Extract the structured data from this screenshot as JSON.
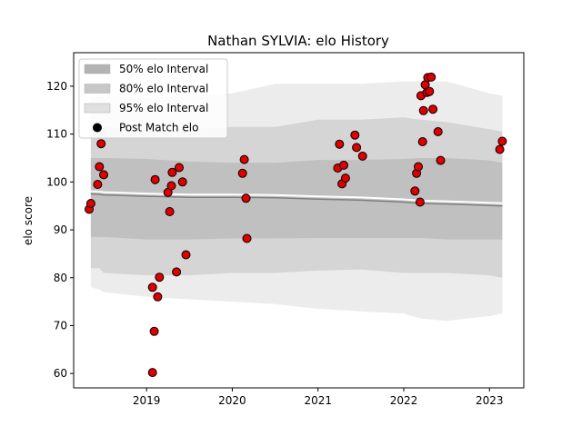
{
  "chart_data": {
    "type": "scatter",
    "title": "Nathan SYLVIA: elo History",
    "xlabel": "",
    "ylabel": "elo score",
    "xlim": [
      2018.15,
      2023.4
    ],
    "ylim": [
      57,
      127
    ],
    "x_ticks": [
      {
        "value": 2019,
        "label": "2019"
      },
      {
        "value": 2020,
        "label": "2020"
      },
      {
        "value": 2021,
        "label": "2021"
      },
      {
        "value": 2022,
        "label": "2022"
      },
      {
        "value": 2023,
        "label": "2023"
      }
    ],
    "y_ticks": [
      {
        "value": 60,
        "label": "60"
      },
      {
        "value": 70,
        "label": "70"
      },
      {
        "value": 80,
        "label": "80"
      },
      {
        "value": 90,
        "label": "90"
      },
      {
        "value": 100,
        "label": "100"
      },
      {
        "value": 110,
        "label": "110"
      },
      {
        "value": 120,
        "label": "120"
      }
    ],
    "grid": false,
    "legend_position": "top-left",
    "legend": [
      {
        "label": "50% elo Interval",
        "kind": "band",
        "color": "#b3b3b3"
      },
      {
        "label": "80% elo Interval",
        "kind": "band",
        "color": "#c7c7c7"
      },
      {
        "label": "95% elo Interval",
        "kind": "band",
        "color": "#e0e0e0"
      },
      {
        "label": "Post Match elo",
        "kind": "marker",
        "color": "#000000"
      }
    ],
    "bands": {
      "x": [
        2018.35,
        2018.45,
        2018.5,
        2019.0,
        2019.5,
        2020.0,
        2020.5,
        2021.0,
        2021.5,
        2022.0,
        2022.2,
        2022.5,
        2023.0,
        2023.15
      ],
      "mean": [
        97.5,
        97.4,
        97.3,
        97.0,
        96.8,
        96.8,
        96.7,
        96.4,
        96.2,
        95.8,
        95.5,
        95.4,
        95.1,
        95.0
      ],
      "p50_low": [
        88.5,
        88.5,
        88.5,
        88.0,
        88.0,
        88.2,
        88.2,
        88.3,
        88.3,
        88.3,
        88.3,
        88.0,
        88.0,
        88.0
      ],
      "p50_high": [
        105.0,
        105.0,
        105.0,
        104.8,
        104.3,
        104.0,
        104.0,
        104.6,
        104.6,
        104.8,
        105.0,
        105.0,
        104.5,
        104.0
      ],
      "p80_low": [
        82.0,
        82.0,
        81.0,
        80.5,
        80.5,
        81.0,
        81.0,
        81.5,
        81.7,
        81.0,
        81.0,
        81.0,
        80.5,
        80.0
      ],
      "p80_high": [
        111.0,
        112.0,
        111.5,
        111.0,
        111.0,
        111.5,
        111.5,
        113.0,
        113.0,
        113.5,
        113.0,
        112.5,
        111.0,
        110.5
      ],
      "p95_low": [
        78.0,
        77.5,
        77.0,
        76.0,
        75.5,
        75.0,
        74.5,
        73.5,
        73.0,
        72.5,
        71.5,
        71.0,
        72.0,
        72.5
      ],
      "p95_high": [
        117.5,
        118.0,
        118.0,
        117.5,
        118.0,
        118.5,
        120.5,
        120.5,
        120.5,
        121.0,
        121.0,
        121.0,
        118.5,
        118.0
      ]
    },
    "series": [
      {
        "name": "Post Match elo",
        "color": "#dd0000",
        "x": [
          2018.33,
          2018.35,
          2018.43,
          2018.45,
          2018.47,
          2018.5,
          2019.07,
          2019.09,
          2019.1,
          2019.13,
          2019.15,
          2019.25,
          2019.27,
          2019.29,
          2019.3,
          2019.35,
          2019.38,
          2019.42,
          2019.46,
          2020.12,
          2020.14,
          2020.16,
          2020.17,
          2021.23,
          2021.25,
          2021.28,
          2021.3,
          2021.32,
          2021.43,
          2021.45,
          2021.52,
          2022.13,
          2022.15,
          2022.17,
          2022.19,
          2022.2,
          2022.22,
          2022.23,
          2022.25,
          2022.27,
          2022.28,
          2022.3,
          2022.32,
          2022.34,
          2022.4,
          2022.43,
          2023.12,
          2023.15
        ],
        "y": [
          94.3,
          95.5,
          99.5,
          103.2,
          108.0,
          101.5,
          78.0,
          68.8,
          100.5,
          76.0,
          80.1,
          97.8,
          93.8,
          99.2,
          102.0,
          81.2,
          103.0,
          100.0,
          84.8,
          101.8,
          104.7,
          96.6,
          88.2,
          102.9,
          107.9,
          99.6,
          103.5,
          100.8,
          109.8,
          107.2,
          105.4,
          98.1,
          101.8,
          103.2,
          95.8,
          118.0,
          108.4,
          114.9,
          120.3,
          118.7,
          121.8,
          118.9,
          121.9,
          115.2,
          110.5,
          104.5,
          106.8,
          108.5
        ]
      },
      {
        "name": "",
        "color": "#dd0000",
        "x": [
          2019.07
        ],
        "y": [
          60.2
        ]
      }
    ]
  }
}
